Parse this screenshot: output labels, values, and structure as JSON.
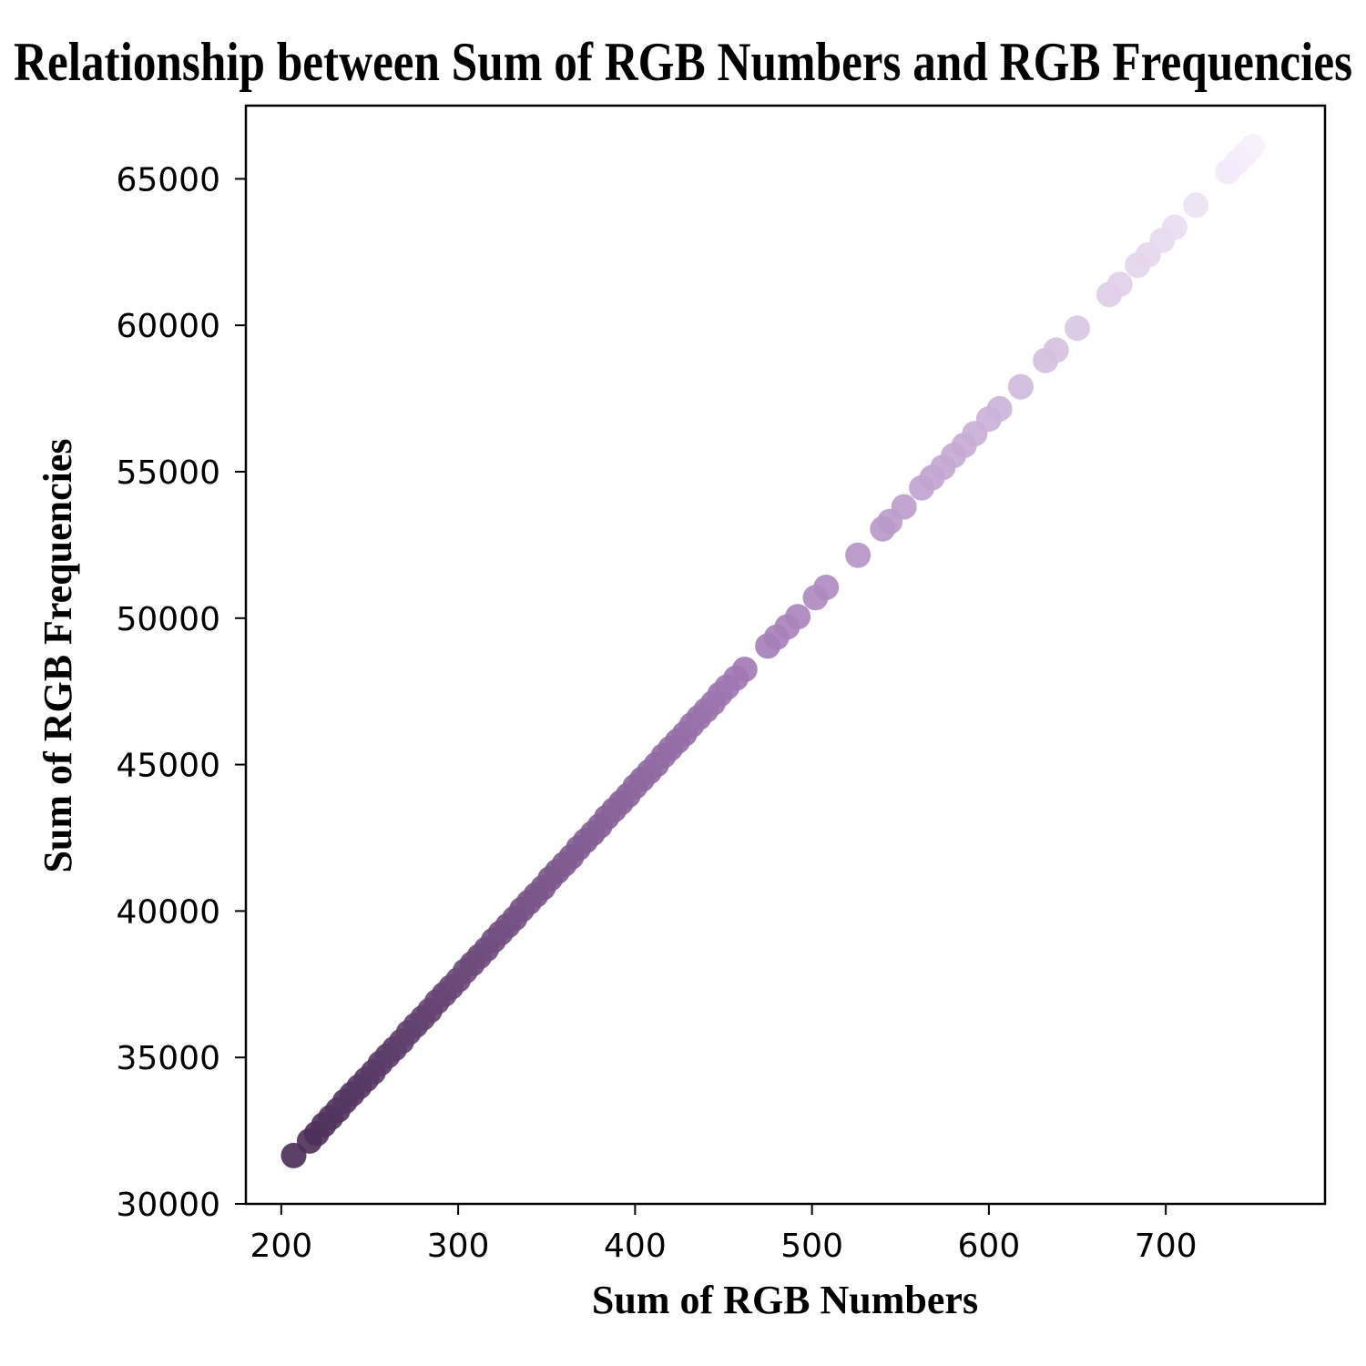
{
  "chart_data": {
    "type": "scatter",
    "title": "Relationship between Sum of RGB Numbers and RGB Frequencies",
    "xlabel": "Sum of RGB Numbers",
    "ylabel": "Sum of RGB Frequencies",
    "xlim": [
      180,
      790
    ],
    "ylim": [
      30000,
      67500
    ],
    "x_ticks": [
      200,
      300,
      400,
      500,
      600,
      700
    ],
    "y_ticks": [
      30000,
      35000,
      40000,
      45000,
      50000,
      55000,
      60000,
      65000
    ],
    "x_tick_labels": [
      "200",
      "300",
      "400",
      "500",
      "600",
      "700"
    ],
    "y_tick_labels": [
      "30000",
      "35000",
      "40000",
      "45000",
      "50000",
      "55000",
      "60000",
      "65000"
    ],
    "grid": false,
    "color_map": {
      "low": "#4a2c55",
      "mid": "#a47bb8",
      "high": "#f6effb"
    },
    "points": [
      {
        "x": 207,
        "y": 31650
      },
      {
        "x": 216,
        "y": 32150
      },
      {
        "x": 220,
        "y": 32400
      },
      {
        "x": 224,
        "y": 32700
      },
      {
        "x": 228,
        "y": 32950
      },
      {
        "x": 232,
        "y": 33200
      },
      {
        "x": 236,
        "y": 33500
      },
      {
        "x": 240,
        "y": 33750
      },
      {
        "x": 244,
        "y": 34000
      },
      {
        "x": 248,
        "y": 34250
      },
      {
        "x": 252,
        "y": 34500
      },
      {
        "x": 256,
        "y": 34800
      },
      {
        "x": 260,
        "y": 35050
      },
      {
        "x": 264,
        "y": 35300
      },
      {
        "x": 268,
        "y": 35550
      },
      {
        "x": 272,
        "y": 35850
      },
      {
        "x": 276,
        "y": 36100
      },
      {
        "x": 280,
        "y": 36350
      },
      {
        "x": 284,
        "y": 36600
      },
      {
        "x": 288,
        "y": 36900
      },
      {
        "x": 292,
        "y": 37150
      },
      {
        "x": 296,
        "y": 37400
      },
      {
        "x": 300,
        "y": 37650
      },
      {
        "x": 304,
        "y": 37950
      },
      {
        "x": 308,
        "y": 38200
      },
      {
        "x": 312,
        "y": 38450
      },
      {
        "x": 316,
        "y": 38700
      },
      {
        "x": 320,
        "y": 39000
      },
      {
        "x": 324,
        "y": 39250
      },
      {
        "x": 328,
        "y": 39500
      },
      {
        "x": 332,
        "y": 39750
      },
      {
        "x": 336,
        "y": 40050
      },
      {
        "x": 340,
        "y": 40300
      },
      {
        "x": 344,
        "y": 40550
      },
      {
        "x": 348,
        "y": 40800
      },
      {
        "x": 352,
        "y": 41100
      },
      {
        "x": 356,
        "y": 41350
      },
      {
        "x": 360,
        "y": 41600
      },
      {
        "x": 364,
        "y": 41850
      },
      {
        "x": 368,
        "y": 42150
      },
      {
        "x": 372,
        "y": 42400
      },
      {
        "x": 376,
        "y": 42650
      },
      {
        "x": 380,
        "y": 42900
      },
      {
        "x": 384,
        "y": 43200
      },
      {
        "x": 388,
        "y": 43450
      },
      {
        "x": 392,
        "y": 43700
      },
      {
        "x": 396,
        "y": 43950
      },
      {
        "x": 400,
        "y": 44250
      },
      {
        "x": 404,
        "y": 44500
      },
      {
        "x": 408,
        "y": 44750
      },
      {
        "x": 412,
        "y": 45000
      },
      {
        "x": 416,
        "y": 45300
      },
      {
        "x": 420,
        "y": 45550
      },
      {
        "x": 424,
        "y": 45800
      },
      {
        "x": 428,
        "y": 46050
      },
      {
        "x": 432,
        "y": 46350
      },
      {
        "x": 436,
        "y": 46600
      },
      {
        "x": 440,
        "y": 46850
      },
      {
        "x": 444,
        "y": 47100
      },
      {
        "x": 448,
        "y": 47400
      },
      {
        "x": 452,
        "y": 47650
      },
      {
        "x": 457,
        "y": 47950
      },
      {
        "x": 462,
        "y": 48250
      },
      {
        "x": 475,
        "y": 49050
      },
      {
        "x": 480,
        "y": 49350
      },
      {
        "x": 486,
        "y": 49700
      },
      {
        "x": 492,
        "y": 50050
      },
      {
        "x": 502,
        "y": 50700
      },
      {
        "x": 508,
        "y": 51050
      },
      {
        "x": 526,
        "y": 52150
      },
      {
        "x": 540,
        "y": 53050
      },
      {
        "x": 544,
        "y": 53300
      },
      {
        "x": 552,
        "y": 53800
      },
      {
        "x": 562,
        "y": 54450
      },
      {
        "x": 568,
        "y": 54800
      },
      {
        "x": 574,
        "y": 55150
      },
      {
        "x": 580,
        "y": 55550
      },
      {
        "x": 586,
        "y": 55900
      },
      {
        "x": 592,
        "y": 56300
      },
      {
        "x": 600,
        "y": 56800
      },
      {
        "x": 606,
        "y": 57150
      },
      {
        "x": 618,
        "y": 57900
      },
      {
        "x": 632,
        "y": 58800
      },
      {
        "x": 638,
        "y": 59150
      },
      {
        "x": 650,
        "y": 59900
      },
      {
        "x": 668,
        "y": 61050
      },
      {
        "x": 674,
        "y": 61400
      },
      {
        "x": 684,
        "y": 62050
      },
      {
        "x": 690,
        "y": 62400
      },
      {
        "x": 698,
        "y": 62900
      },
      {
        "x": 705,
        "y": 63350
      },
      {
        "x": 717,
        "y": 64100
      },
      {
        "x": 735,
        "y": 65250
      },
      {
        "x": 740,
        "y": 65550
      },
      {
        "x": 745,
        "y": 65850
      },
      {
        "x": 749,
        "y": 66100
      }
    ]
  }
}
